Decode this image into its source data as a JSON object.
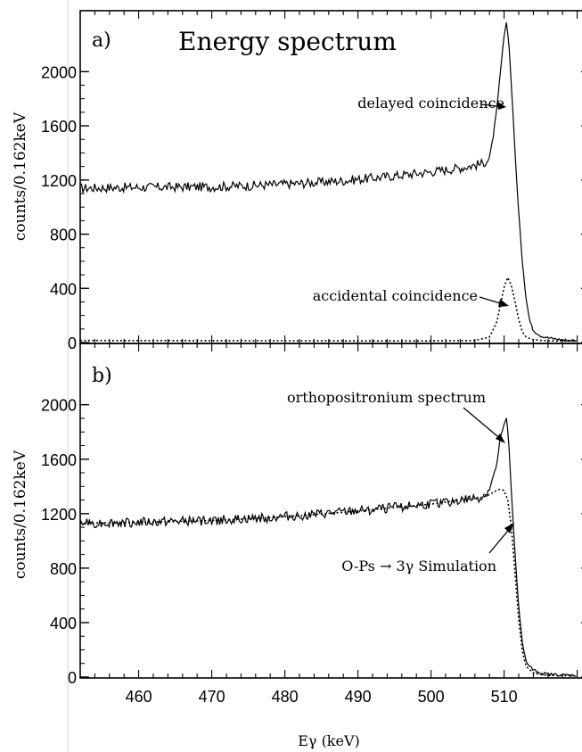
{
  "chart_data": [
    {
      "type": "line",
      "panel_label": "a)",
      "title": "Energy spectrum",
      "xlabel": "",
      "ylabel": "counts/0.162keV",
      "xlim": [
        452,
        520
      ],
      "ylim": [
        0,
        2450
      ],
      "yticks": [
        0,
        400,
        800,
        1200,
        1600,
        2000
      ],
      "grid": false,
      "series": [
        {
          "name": "delayed coincidence",
          "style": "solid",
          "x": [
            452,
            458,
            464,
            470,
            476,
            482,
            488,
            494,
            500,
            504,
            507,
            508,
            508.5,
            509,
            509.5,
            510,
            510.3,
            510.6,
            511,
            511.5,
            512,
            512.5,
            513,
            513.5,
            514,
            515,
            516,
            518,
            520
          ],
          "y": [
            1140,
            1145,
            1148,
            1150,
            1160,
            1175,
            1195,
            1225,
            1260,
            1290,
            1320,
            1360,
            1520,
            1720,
            2000,
            2260,
            2370,
            2250,
            1900,
            1400,
            950,
            600,
            330,
            160,
            90,
            50,
            35,
            20,
            15
          ]
        },
        {
          "name": "accidental coincidence",
          "style": "dotted",
          "x": [
            452,
            470,
            490,
            500,
            506,
            508,
            509,
            509.5,
            510,
            510.5,
            511,
            511.5,
            512,
            512.5,
            513,
            514,
            516,
            520
          ],
          "y": [
            15,
            14,
            12,
            12,
            15,
            40,
            150,
            280,
            410,
            480,
            420,
            300,
            170,
            80,
            40,
            20,
            12,
            10
          ]
        }
      ],
      "annotations": [
        "delayed coincidence",
        "accidental coincidence"
      ]
    },
    {
      "type": "line",
      "panel_label": "b)",
      "title": "",
      "xlabel": "Eγ (keV)",
      "ylabel": "counts/0.162keV",
      "xlim": [
        452,
        520
      ],
      "ylim": [
        0,
        2450
      ],
      "yticks": [
        0,
        400,
        800,
        1200,
        1600,
        2000
      ],
      "xticks": [
        460,
        470,
        480,
        490,
        500,
        510
      ],
      "grid": false,
      "series": [
        {
          "name": "orthopositronium spectrum",
          "style": "solid",
          "x": [
            452,
            458,
            464,
            470,
            476,
            482,
            488,
            494,
            500,
            504,
            507,
            508,
            509,
            509.5,
            510,
            510.3,
            510.6,
            511,
            511.5,
            512,
            512.5,
            513,
            514,
            515,
            516,
            518,
            520
          ],
          "y": [
            1130,
            1135,
            1140,
            1150,
            1165,
            1185,
            1210,
            1240,
            1270,
            1300,
            1320,
            1380,
            1560,
            1760,
            1850,
            1910,
            1750,
            1350,
            900,
            520,
            250,
            110,
            50,
            30,
            20,
            15,
            12
          ]
        },
        {
          "name": "O-Ps → 3γ Simulation",
          "style": "dotted",
          "x": [
            452,
            458,
            464,
            470,
            476,
            482,
            488,
            494,
            500,
            504,
            507,
            508,
            509,
            509.5,
            510,
            510.5,
            511,
            511.5,
            512,
            512.5,
            513,
            514,
            515,
            516,
            520
          ],
          "y": [
            1130,
            1135,
            1140,
            1150,
            1165,
            1185,
            1210,
            1240,
            1270,
            1300,
            1320,
            1340,
            1370,
            1380,
            1370,
            1300,
            1100,
            760,
            420,
            190,
            80,
            30,
            18,
            12,
            10
          ]
        }
      ],
      "annotations": [
        "orthopositronium spectrum",
        "O-Ps → 3γ Simulation"
      ]
    }
  ]
}
